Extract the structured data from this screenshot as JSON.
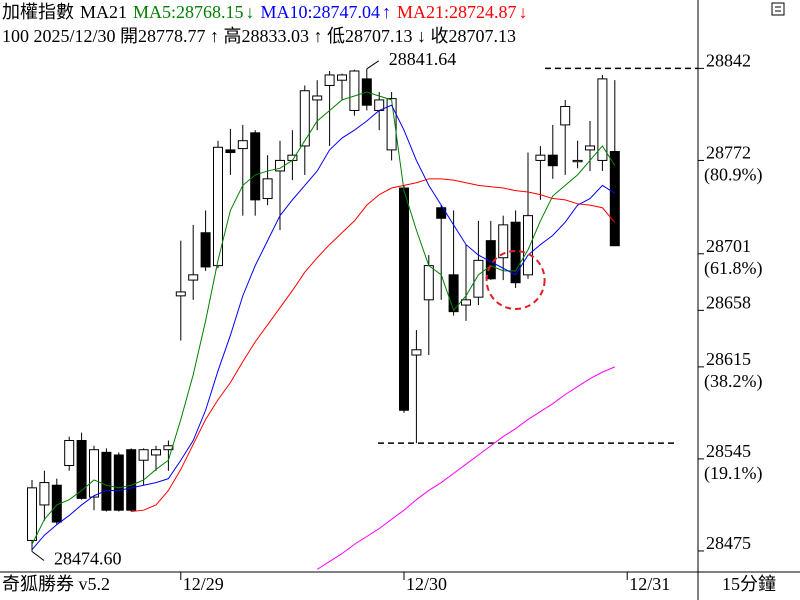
{
  "chart_data": {
    "type": "candlestick",
    "title": "加權指數",
    "indicator": "MA21",
    "info": "100 2025/12/30 開28778.77 ↑ 高28833.03 ↑ 低28707.13 ↓ 收28707.13",
    "open": [
      28483,
      28510,
      28525,
      28540,
      28559,
      28516,
      28550,
      28548,
      28552,
      28544,
      28548,
      28552,
      28669,
      28681,
      28717,
      28692,
      28780,
      28781,
      28793,
      28743,
      28764,
      28772,
      28783,
      28818,
      28829,
      28833,
      28810,
      28834,
      28810,
      28780,
      28751,
      28624,
      28666,
      28736,
      28685,
      28662,
      28668,
      28711,
      28698,
      28725,
      28685,
      28772,
      28776,
      28799,
      28771,
      28780,
      28772,
      28778.77
    ],
    "high": [
      28529,
      28536,
      28530,
      28562,
      28565,
      28555,
      28553,
      28550,
      28553,
      28553,
      28555,
      28559,
      28711,
      28723,
      28734,
      28787,
      28796,
      28799,
      28795,
      28776,
      28787,
      28795,
      28829,
      28833,
      28840,
      28838,
      28841,
      28841.64,
      28824,
      28824,
      28753,
      28643,
      28700,
      28738,
      28734,
      28708,
      28726,
      28726,
      28730,
      28734,
      28778,
      28783,
      28799,
      28818,
      28787,
      28802,
      28837,
      28833.03
    ],
    "low": [
      28474.6,
      28498,
      28495,
      28536,
      28514,
      28506,
      28505,
      28505,
      28505,
      28525,
      28536,
      28536,
      28635,
      28666,
      28688,
      28690,
      28761,
      28730,
      28730,
      28738,
      28719,
      28757,
      28761,
      28795,
      28783,
      28818,
      28806,
      28810,
      28795,
      28772,
      28580,
      28557,
      28624,
      28666,
      28654,
      28650,
      28662,
      28681,
      28681,
      28675,
      28682,
      28742,
      28758,
      28761,
      28766,
      28764,
      28764,
      28707.13
    ],
    "close": [
      28523,
      28527,
      28497,
      28559,
      28515,
      28552,
      28506,
      28506,
      28506,
      28552,
      28552,
      28555,
      28672,
      28685,
      28691,
      28782,
      28778,
      28787,
      28742,
      28758,
      28772,
      28776,
      28825,
      28821,
      28837,
      28837,
      28840,
      28814,
      28818,
      28819,
      28582,
      28628,
      28692,
      28728,
      28657,
      28666,
      28696,
      28682,
      28723,
      28679,
      28730,
      28776,
      28768,
      28813,
      28772,
      28783,
      28834,
      28707.13
    ],
    "series": [
      {
        "label": "MA5:28768.15",
        "trend": "↓",
        "color": "#008000",
        "values": [
          28480,
          28499,
          28510,
          28514,
          28521,
          28529,
          28525,
          28523,
          28525,
          28529,
          28537,
          28544,
          28575,
          28609,
          28650,
          28696,
          28734,
          28753,
          28761,
          28764,
          28766,
          28772,
          28787,
          28802,
          28810,
          28818,
          28821,
          28824,
          28821,
          28818,
          28749,
          28719,
          28692,
          28685,
          28658,
          28669,
          28685,
          28692,
          28688,
          28688,
          28704,
          28726,
          28745,
          28753,
          28761,
          28772,
          28783,
          28768.15
        ]
      },
      {
        "label": "MA10:28747.04",
        "trend": "↑",
        "color": "#0000ff",
        "values": [
          28476,
          28487,
          28495,
          28502,
          28510,
          28517,
          28521,
          28521,
          28523,
          28525,
          28527,
          28530,
          28544,
          28559,
          28582,
          28612,
          28639,
          28669,
          28692,
          28711,
          28730,
          28742,
          28753,
          28764,
          28780,
          28789,
          28795,
          28802,
          28810,
          28814,
          28795,
          28772,
          28753,
          28738,
          28723,
          28708,
          28700,
          28695,
          28690,
          28685,
          28700,
          28708,
          28715,
          28725,
          28738,
          28743,
          28753,
          28747.04
        ]
      },
      {
        "label": "MA21:28724.87",
        "trend": "↓",
        "color": "#ff0000",
        "values": [
          null,
          null,
          null,
          null,
          null,
          null,
          null,
          null,
          28505,
          28506,
          28510,
          28521,
          28537,
          28556,
          28575,
          28590,
          28603,
          28619,
          28634,
          28647,
          28660,
          28673,
          28687,
          28698,
          28708,
          28717,
          28726,
          28738,
          28746,
          28751,
          28753,
          28755,
          28758,
          28758,
          28757,
          28755,
          28753,
          28752,
          28751,
          28749,
          28748,
          28746,
          28743,
          28742,
          28739,
          28738,
          28736,
          28724.87
        ]
      },
      {
        "color": "#ff00ff",
        "values": [
          null,
          null,
          null,
          null,
          null,
          null,
          null,
          null,
          null,
          null,
          null,
          null,
          null,
          null,
          null,
          null,
          null,
          null,
          null,
          null,
          null,
          null,
          null,
          28461,
          28467,
          28473,
          28480,
          28486,
          28492,
          28499,
          28506,
          28514,
          28521,
          28527,
          28534,
          28541,
          28548,
          28555,
          28562,
          28568,
          28575,
          28581,
          28587,
          28594,
          28600,
          28606,
          28611,
          28615
        ]
      }
    ],
    "ylim": [
      28459,
      28894
    ],
    "yticks": [
      28842,
      28772,
      28701,
      28658,
      28615,
      28545,
      28475
    ],
    "fib_levels": [
      {
        "price": 28772,
        "label": "(80.9%)"
      },
      {
        "price": 28701,
        "label": "(61.8%)"
      },
      {
        "price": 28615,
        "label": "(38.2%)"
      },
      {
        "price": 28545,
        "label": "(19.1%)"
      }
    ],
    "x_labels": [
      {
        "index": 12,
        "label": "12/29"
      },
      {
        "index": 30,
        "label": "12/30"
      },
      {
        "index": 48,
        "label": "12/31"
      }
    ],
    "annotations": [
      {
        "index": 27,
        "value": 28841.64,
        "label": "28841.64"
      },
      {
        "index": 0,
        "value": 28474.6,
        "label": "28474.60"
      }
    ],
    "brand": "奇狐勝券 v5.2",
    "period": "15分鐘"
  }
}
